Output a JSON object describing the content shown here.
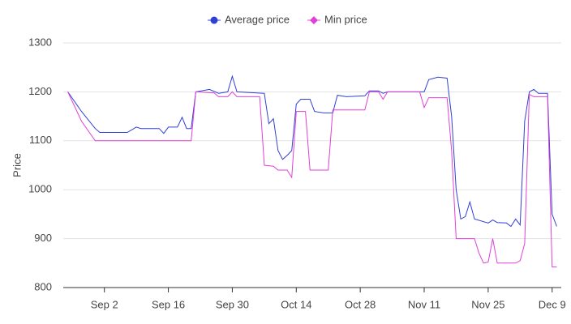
{
  "chart_data": {
    "type": "line",
    "ylabel": "Price",
    "series": [
      {
        "name": "Average price",
        "color": "#3140d4",
        "marker": "circle",
        "x": [
          "Aug 25",
          "Aug 28",
          "Aug 31",
          "Sep 1",
          "Sep 7",
          "Sep 9",
          "Sep 10",
          "Sep 14",
          "Sep 15",
          "Sep 16",
          "Sep 18",
          "Sep 19",
          "Sep 20",
          "Sep 21",
          "Sep 22",
          "Sep 25",
          "Sep 27",
          "Sep 29",
          "Sep 30",
          "Oct 1",
          "Oct 7",
          "Oct 8",
          "Oct 9",
          "Oct 10",
          "Oct 11",
          "Oct 12",
          "Oct 13",
          "Oct 14",
          "Oct 15",
          "Oct 17",
          "Oct 18",
          "Oct 20",
          "Oct 22",
          "Oct 23",
          "Oct 25",
          "Oct 29",
          "Oct 30",
          "Nov 1",
          "Nov 2",
          "Nov 3",
          "Nov 11",
          "Nov 12",
          "Nov 14",
          "Nov 16",
          "Nov 17",
          "Nov 18",
          "Nov 19",
          "Nov 20",
          "Nov 21",
          "Nov 22",
          "Nov 25",
          "Nov 26",
          "Nov 27",
          "Nov 29",
          "Nov 30",
          "Dec 1",
          "Dec 2",
          "Dec 3",
          "Dec 4",
          "Dec 5",
          "Dec 6",
          "Dec 8",
          "Dec 9",
          "Dec 10"
        ],
        "values": [
          1200,
          1160,
          1125,
          1117,
          1117,
          1128,
          1125,
          1125,
          1115,
          1128,
          1128,
          1148,
          1125,
          1125,
          1200,
          1205,
          1197,
          1200,
          1232,
          1200,
          1197,
          1135,
          1145,
          1080,
          1062,
          1070,
          1080,
          1175,
          1185,
          1185,
          1160,
          1157,
          1157,
          1193,
          1190,
          1192,
          1202,
          1202,
          1197,
          1200,
          1200,
          1225,
          1230,
          1228,
          1150,
          1000,
          940,
          945,
          975,
          940,
          932,
          938,
          933,
          932,
          925,
          940,
          928,
          1140,
          1200,
          1205,
          1197,
          1197,
          950,
          925
        ]
      },
      {
        "name": "Min price",
        "color": "#e040d8",
        "marker": "diamond",
        "x": [
          "Aug 25",
          "Aug 28",
          "Aug 31",
          "Sep 21",
          "Sep 22",
          "Sep 26",
          "Sep 27",
          "Sep 29",
          "Sep 30",
          "Oct 1",
          "Oct 6",
          "Oct 7",
          "Oct 9",
          "Oct 10",
          "Oct 12",
          "Oct 13",
          "Oct 14",
          "Oct 16",
          "Oct 17",
          "Oct 21",
          "Oct 22",
          "Oct 29",
          "Oct 30",
          "Nov 1",
          "Nov 2",
          "Nov 3",
          "Nov 10",
          "Nov 11",
          "Nov 12",
          "Nov 16",
          "Nov 17",
          "Nov 18",
          "Nov 22",
          "Nov 23",
          "Nov 24",
          "Nov 25",
          "Nov 26",
          "Nov 27",
          "Dec 1",
          "Dec 2",
          "Dec 3",
          "Dec 4",
          "Dec 5",
          "Dec 8",
          "Dec 9",
          "Dec 10"
        ],
        "values": [
          1200,
          1140,
          1100,
          1100,
          1200,
          1198,
          1190,
          1190,
          1200,
          1190,
          1190,
          1050,
          1048,
          1040,
          1040,
          1025,
          1160,
          1160,
          1040,
          1040,
          1163,
          1163,
          1200,
          1200,
          1185,
          1200,
          1200,
          1168,
          1188,
          1188,
          1080,
          900,
          900,
          870,
          850,
          852,
          900,
          850,
          850,
          855,
          890,
          1195,
          1190,
          1190,
          842,
          842
        ]
      }
    ],
    "xlim": [
      "Aug 24",
      "Dec 11"
    ],
    "xticks": [
      "Sep 2",
      "Sep 16",
      "Sep 30",
      "Oct 14",
      "Oct 28",
      "Nov 11",
      "Nov 25",
      "Dec 9"
    ],
    "ylim": [
      800,
      1300
    ],
    "yticks": [
      800,
      900,
      1000,
      1100,
      1200,
      1300
    ],
    "grid": true,
    "legend": "top"
  }
}
